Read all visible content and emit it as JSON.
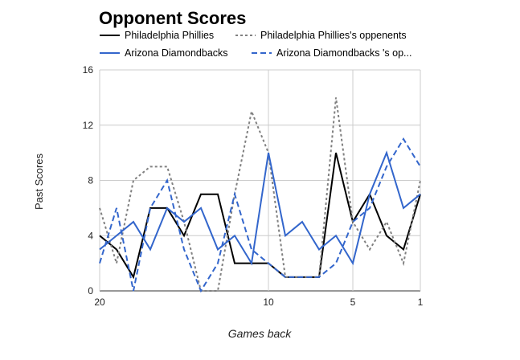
{
  "chart_data": {
    "type": "line",
    "title": "Opponent Scores",
    "xlabel": "Games back",
    "ylabel": "Past Scores",
    "x": [
      20,
      19,
      18,
      17,
      16,
      15,
      14,
      13,
      12,
      11,
      10,
      9,
      8,
      7,
      6,
      5,
      4,
      3,
      2,
      1
    ],
    "x_ticks": [
      "20",
      "10",
      "5",
      "1"
    ],
    "x_tick_values": [
      20,
      10,
      5,
      1
    ],
    "x_reversed": true,
    "ylim": [
      0,
      16
    ],
    "y_ticks": [
      "0",
      "4",
      "8",
      "12",
      "16"
    ],
    "y_tick_values": [
      0,
      4,
      8,
      12,
      16
    ],
    "legend_position": "top",
    "series": [
      {
        "name": "Philadelphia Phillies",
        "color": "#000000",
        "dash": "solid",
        "values": [
          4,
          3,
          1,
          6,
          6,
          4,
          7,
          7,
          2,
          2,
          2,
          1,
          1,
          1,
          10,
          5,
          7,
          4,
          3,
          7
        ]
      },
      {
        "name": "Philadelphia Phillies's oppenents",
        "color": "#808080",
        "dash": "dotted",
        "values": [
          6,
          2,
          8,
          9,
          9,
          5,
          0,
          0,
          7,
          13,
          10,
          1,
          1,
          1,
          14,
          5,
          3,
          5,
          2,
          8
        ]
      },
      {
        "name": "Arizona Diamondbacks",
        "color": "#3366cc",
        "dash": "solid",
        "values": [
          3,
          4,
          5,
          3,
          6,
          5,
          6,
          3,
          4,
          2,
          10,
          4,
          5,
          3,
          4,
          2,
          7,
          10,
          6,
          7
        ]
      },
      {
        "name": "Arizona Diamondbacks 's op...",
        "color": "#3366cc",
        "dash": "dashed",
        "values": [
          2,
          6,
          0,
          6,
          8,
          3,
          0,
          2,
          7,
          3,
          2,
          1,
          1,
          1,
          2,
          5,
          6,
          9,
          11,
          9
        ]
      }
    ]
  }
}
